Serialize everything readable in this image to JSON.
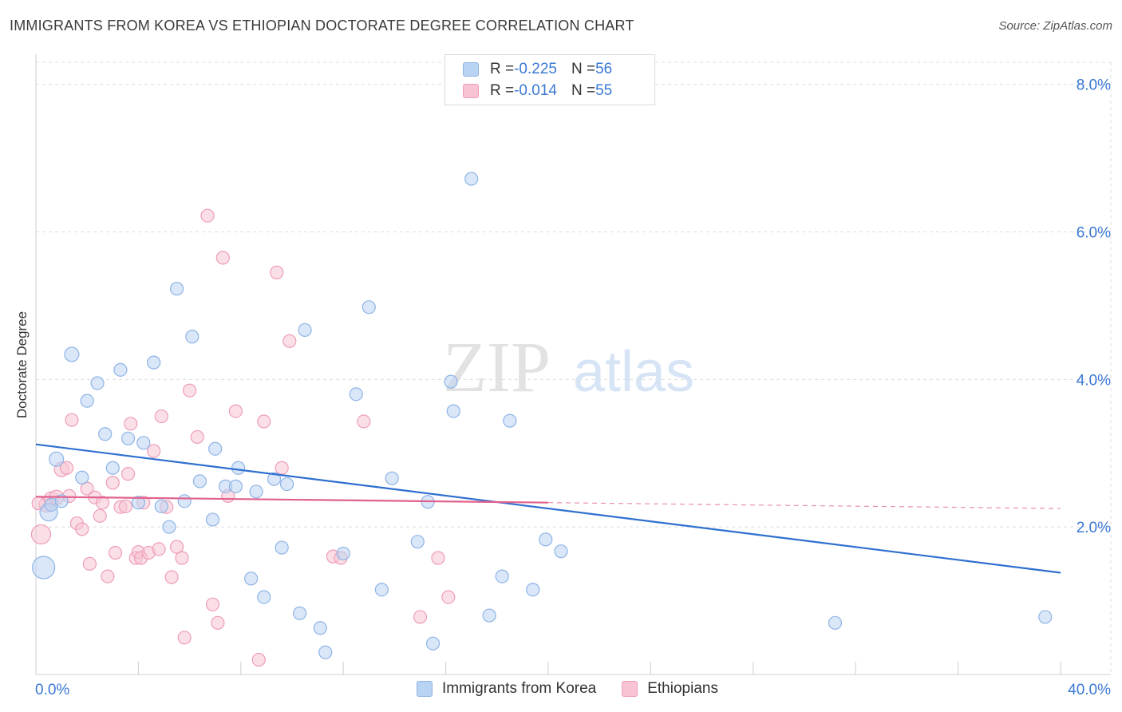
{
  "title": "IMMIGRANTS FROM KOREA VS ETHIOPIAN DOCTORATE DEGREE CORRELATION CHART",
  "source": "Source: ZipAtlas.com",
  "watermark": {
    "zip": "ZIP",
    "atlas": "atlas"
  },
  "colors": {
    "blue_fill": "#b9d3f3",
    "blue_stroke": "#8fb4e6",
    "blue_line": "#2f6fd0",
    "pink_fill": "#f8c4d4",
    "pink_stroke": "#ee9db8",
    "pink_line": "#e0608e",
    "axis_label": "#3a78d4",
    "grid": "#dcdcdc"
  },
  "legend": {
    "korea": {
      "r_label": "R = ",
      "r_value": "-0.225",
      "n_label": "N = ",
      "n_value": "56"
    },
    "ethiopia": {
      "r_label": "R = ",
      "r_value": "-0.014",
      "n_label": "N = ",
      "n_value": "55"
    }
  },
  "chart_data": {
    "type": "scatter",
    "title": "IMMIGRANTS FROM KOREA VS ETHIOPIAN DOCTORATE DEGREE CORRELATION CHART",
    "xlabel": "",
    "ylabel": "Doctorate Degree",
    "xlim": [
      0,
      40
    ],
    "ylim": [
      0,
      8.3
    ],
    "x_tick_labels": [
      "0.0%",
      "40.0%"
    ],
    "y_ticks": [
      2,
      4,
      6,
      8
    ],
    "y_tick_labels": [
      "2.0%",
      "4.0%",
      "6.0%",
      "8.0%"
    ],
    "grid": true,
    "series": [
      {
        "name": "Immigrants from Korea",
        "color": "blue",
        "trend": {
          "x": [
            0,
            40
          ],
          "y": [
            3.12,
            1.38
          ]
        },
        "points": [
          [
            0.3,
            1.45,
            14
          ],
          [
            0.5,
            2.2,
            11
          ],
          [
            0.8,
            2.92,
            9
          ],
          [
            1.4,
            4.34,
            9
          ],
          [
            1.8,
            2.67,
            8
          ],
          [
            2.0,
            3.71,
            8
          ],
          [
            2.4,
            3.95,
            8
          ],
          [
            2.7,
            3.26,
            8
          ],
          [
            3.0,
            2.8,
            8
          ],
          [
            3.3,
            4.13,
            8
          ],
          [
            3.6,
            3.2,
            8
          ],
          [
            4.0,
            2.33,
            8
          ],
          [
            4.2,
            3.14,
            8
          ],
          [
            4.6,
            4.23,
            8
          ],
          [
            4.9,
            2.28,
            8
          ],
          [
            5.2,
            2.0,
            8
          ],
          [
            5.5,
            5.23,
            8
          ],
          [
            5.8,
            2.35,
            8
          ],
          [
            6.1,
            4.58,
            8
          ],
          [
            6.4,
            2.62,
            8
          ],
          [
            6.9,
            2.1,
            8
          ],
          [
            7.0,
            3.06,
            8
          ],
          [
            7.4,
            2.55,
            8
          ],
          [
            7.8,
            2.55,
            8
          ],
          [
            7.9,
            2.8,
            8
          ],
          [
            8.4,
            1.3,
            8
          ],
          [
            8.6,
            2.48,
            8
          ],
          [
            8.9,
            1.05,
            8
          ],
          [
            9.3,
            2.65,
            8
          ],
          [
            9.6,
            1.72,
            8
          ],
          [
            9.8,
            2.58,
            8
          ],
          [
            10.3,
            0.83,
            8
          ],
          [
            10.5,
            4.67,
            8
          ],
          [
            11.1,
            0.63,
            8
          ],
          [
            11.3,
            0.3,
            8
          ],
          [
            12.0,
            1.64,
            8
          ],
          [
            12.5,
            3.8,
            8
          ],
          [
            13.0,
            4.98,
            8
          ],
          [
            13.5,
            1.15,
            8
          ],
          [
            13.9,
            2.66,
            8
          ],
          [
            14.9,
            1.8,
            8
          ],
          [
            15.5,
            0.42,
            8
          ],
          [
            15.3,
            2.34,
            8
          ],
          [
            16.2,
            3.97,
            8
          ],
          [
            16.3,
            3.57,
            8
          ],
          [
            17.0,
            6.72,
            8
          ],
          [
            17.7,
            0.8,
            8
          ],
          [
            18.2,
            1.33,
            8
          ],
          [
            18.5,
            3.44,
            8
          ],
          [
            19.4,
            1.15,
            8
          ],
          [
            19.9,
            1.83,
            8
          ],
          [
            20.5,
            1.67,
            8
          ],
          [
            31.2,
            0.7,
            8
          ],
          [
            39.4,
            0.78,
            8
          ],
          [
            0.6,
            2.3,
            8
          ],
          [
            1.0,
            2.35,
            8
          ]
        ]
      },
      {
        "name": "Ethiopians",
        "color": "pink",
        "trend": {
          "x": [
            0,
            20
          ],
          "y": [
            2.41,
            2.33
          ]
        },
        "trend_dashed": {
          "x": [
            20,
            40
          ],
          "y": [
            2.33,
            2.25
          ]
        },
        "points": [
          [
            0.2,
            1.9,
            12
          ],
          [
            0.4,
            2.3,
            9
          ],
          [
            0.6,
            2.38,
            9
          ],
          [
            0.8,
            2.4,
            9
          ],
          [
            1.0,
            2.78,
            9
          ],
          [
            1.2,
            2.8,
            8
          ],
          [
            1.4,
            3.45,
            8
          ],
          [
            1.6,
            2.05,
            8
          ],
          [
            1.8,
            1.97,
            8
          ],
          [
            2.0,
            2.52,
            8
          ],
          [
            2.1,
            1.5,
            8
          ],
          [
            2.3,
            2.4,
            8
          ],
          [
            2.5,
            2.15,
            8
          ],
          [
            2.6,
            2.33,
            8
          ],
          [
            2.8,
            1.33,
            8
          ],
          [
            3.0,
            2.6,
            8
          ],
          [
            3.1,
            1.65,
            8
          ],
          [
            3.3,
            2.27,
            8
          ],
          [
            3.5,
            2.28,
            8
          ],
          [
            3.6,
            2.72,
            8
          ],
          [
            3.7,
            3.4,
            8
          ],
          [
            3.9,
            1.58,
            8
          ],
          [
            4.0,
            1.66,
            8
          ],
          [
            4.1,
            1.58,
            8
          ],
          [
            4.2,
            2.33,
            8
          ],
          [
            4.4,
            1.65,
            8
          ],
          [
            4.6,
            3.03,
            8
          ],
          [
            4.8,
            1.7,
            8
          ],
          [
            4.9,
            3.5,
            8
          ],
          [
            5.1,
            2.27,
            8
          ],
          [
            5.3,
            1.32,
            8
          ],
          [
            5.5,
            1.73,
            8
          ],
          [
            5.7,
            1.58,
            8
          ],
          [
            5.8,
            0.5,
            8
          ],
          [
            6.0,
            3.85,
            8
          ],
          [
            6.3,
            3.22,
            8
          ],
          [
            6.7,
            6.22,
            8
          ],
          [
            6.9,
            0.95,
            8
          ],
          [
            7.1,
            0.7,
            8
          ],
          [
            7.3,
            5.65,
            8
          ],
          [
            7.5,
            2.42,
            8
          ],
          [
            7.8,
            3.57,
            8
          ],
          [
            8.7,
            0.2,
            8
          ],
          [
            8.9,
            3.43,
            8
          ],
          [
            9.4,
            5.45,
            8
          ],
          [
            9.6,
            2.8,
            8
          ],
          [
            9.9,
            4.52,
            8
          ],
          [
            11.6,
            1.6,
            8
          ],
          [
            11.9,
            1.58,
            8
          ],
          [
            12.8,
            3.43,
            8
          ],
          [
            15.0,
            0.78,
            8
          ],
          [
            15.7,
            1.58,
            8
          ],
          [
            16.1,
            1.05,
            8
          ],
          [
            0.1,
            2.32,
            8
          ],
          [
            1.3,
            2.42,
            8
          ]
        ]
      }
    ]
  },
  "bottom_legend": {
    "korea": "Immigrants from Korea",
    "ethiopia": "Ethiopians"
  }
}
